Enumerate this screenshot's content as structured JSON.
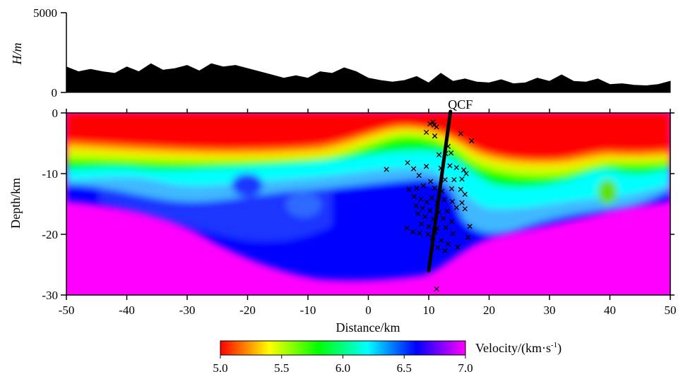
{
  "chart_data": [
    {
      "type": "area",
      "panel": "topography",
      "ylabel": "H/m",
      "ylim": [
        0,
        5000
      ],
      "y_ticks": [
        "5000",
        "0"
      ],
      "x": [
        -50,
        -48,
        -46,
        -44,
        -42,
        -40,
        -38,
        -36,
        -34,
        -32,
        -30,
        -28,
        -26,
        -24,
        -22,
        -20,
        -18,
        -16,
        -14,
        -12,
        -10,
        -8,
        -6,
        -4,
        -2,
        0,
        2,
        4,
        6,
        8,
        10,
        12,
        14,
        16,
        18,
        20,
        22,
        24,
        26,
        28,
        30,
        32,
        34,
        36,
        38,
        40,
        42,
        44,
        46,
        48,
        50
      ],
      "values": [
        1600,
        1300,
        1450,
        1300,
        1200,
        1600,
        1300,
        1800,
        1400,
        1500,
        1700,
        1350,
        1800,
        1600,
        1700,
        1500,
        1300,
        1100,
        900,
        1050,
        900,
        1300,
        1200,
        1550,
        1300,
        900,
        750,
        650,
        750,
        1000,
        600,
        1200,
        700,
        850,
        650,
        600,
        800,
        550,
        600,
        900,
        700,
        1100,
        700,
        650,
        850,
        500,
        550,
        450,
        420,
        500,
        700
      ],
      "color": "#000000"
    },
    {
      "type": "heatmap",
      "panel": "velocity-section",
      "xlabel": "Distance/km",
      "ylabel": "Depth/km",
      "xlim": [
        -50,
        50
      ],
      "ylim": [
        0,
        -30
      ],
      "x_ticks": [
        "-50",
        "-40",
        "-30",
        "-20",
        "-10",
        "0",
        "10",
        "20",
        "30",
        "40",
        "50"
      ],
      "y_ticks": [
        "0",
        "-10",
        "-20",
        "-30"
      ],
      "colorbar": {
        "label": "Velocity/(km·s",
        "label_sup": "-1",
        "label_end": ")",
        "min": 5.0,
        "max": 7.0,
        "ticks": [
          "5.0",
          "5.5",
          "6.0",
          "6.5",
          "7.0"
        ],
        "colors": [
          "#ff0000",
          "#ffff00",
          "#00ff00",
          "#00ffff",
          "#0000ff",
          "#ff00ff"
        ]
      },
      "fault": {
        "name": "QCF",
        "trace": [
          [
            13.6,
            0
          ],
          [
            10.0,
            -26
          ]
        ]
      },
      "earthquakes": [
        [
          10.2,
          -1.8
        ],
        [
          10.7,
          -1.5
        ],
        [
          10.9,
          -2.0
        ],
        [
          11.3,
          -2.3
        ],
        [
          9.6,
          -3.2
        ],
        [
          11.0,
          -3.8
        ],
        [
          15.3,
          -3.4
        ],
        [
          17.1,
          -4.6
        ],
        [
          13.2,
          -5.5
        ],
        [
          12.8,
          -6.7
        ],
        [
          11.7,
          -6.9
        ],
        [
          13.7,
          -6.6
        ],
        [
          6.5,
          -8.2
        ],
        [
          7.5,
          -9.2
        ],
        [
          8.4,
          -10.3
        ],
        [
          9.6,
          -8.8
        ],
        [
          3.0,
          -9.3
        ],
        [
          12.0,
          -9.1
        ],
        [
          13.5,
          -8.7
        ],
        [
          14.6,
          -9.0
        ],
        [
          15.8,
          -9.4
        ],
        [
          16.2,
          -10.0
        ],
        [
          10.3,
          -11.3
        ],
        [
          12.7,
          -11.0
        ],
        [
          14.2,
          -11.0
        ],
        [
          15.5,
          -10.9
        ],
        [
          6.7,
          -12.6
        ],
        [
          8.0,
          -12.4
        ],
        [
          9.1,
          -12.0
        ],
        [
          11.0,
          -12.4
        ],
        [
          12.2,
          -12.9
        ],
        [
          13.8,
          -12.5
        ],
        [
          15.3,
          -12.6
        ],
        [
          16.0,
          -13.4
        ],
        [
          7.6,
          -13.8
        ],
        [
          8.7,
          -14.2
        ],
        [
          9.7,
          -14.7
        ],
        [
          10.5,
          -14.0
        ],
        [
          11.4,
          -14.9
        ],
        [
          12.6,
          -14.3
        ],
        [
          13.9,
          -14.6
        ],
        [
          15.5,
          -14.8
        ],
        [
          16.0,
          -15.8
        ],
        [
          7.9,
          -15.3
        ],
        [
          9.0,
          -15.7
        ],
        [
          10.2,
          -16.1
        ],
        [
          11.7,
          -16.4
        ],
        [
          13.1,
          -16.2
        ],
        [
          14.6,
          -15.6
        ],
        [
          8.2,
          -16.6
        ],
        [
          9.4,
          -17.1
        ],
        [
          10.8,
          -17.5
        ],
        [
          12.4,
          -17.4
        ],
        [
          13.8,
          -17.9
        ],
        [
          8.8,
          -18.3
        ],
        [
          10.0,
          -18.7
        ],
        [
          11.4,
          -19.0
        ],
        [
          12.8,
          -18.9
        ],
        [
          6.4,
          -19.0
        ],
        [
          7.4,
          -19.6
        ],
        [
          8.5,
          -19.8
        ],
        [
          9.9,
          -20.0
        ],
        [
          11.1,
          -19.6
        ],
        [
          14.0,
          -19.9
        ],
        [
          16.8,
          -18.7
        ],
        [
          10.6,
          -20.6
        ],
        [
          12.1,
          -21.0
        ],
        [
          13.2,
          -21.6
        ],
        [
          16.5,
          -20.5
        ],
        [
          11.5,
          -22.2
        ],
        [
          12.7,
          -22.7
        ],
        [
          14.8,
          -22.1
        ],
        [
          11.3,
          -29.0
        ]
      ]
    }
  ]
}
